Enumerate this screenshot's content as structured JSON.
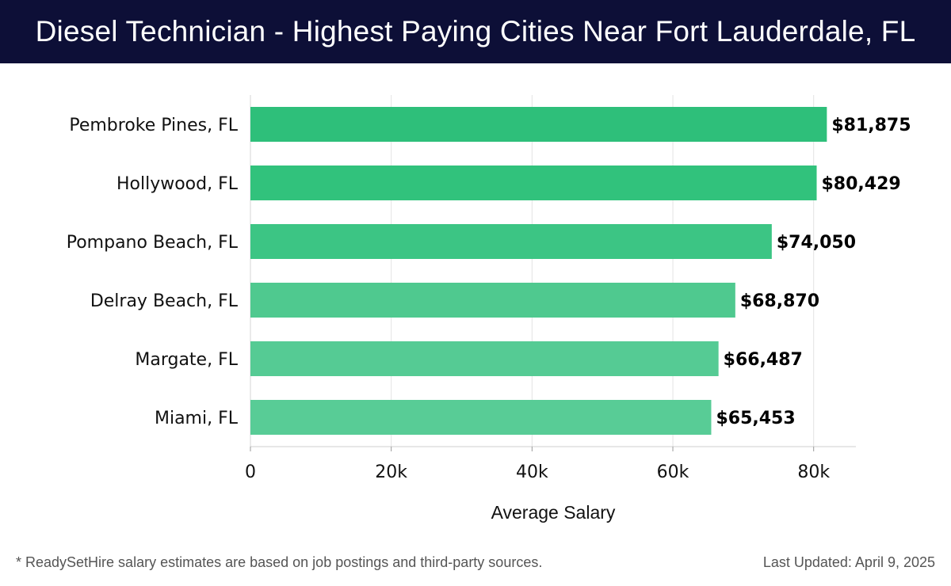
{
  "header": {
    "title": "Diesel Technician - Highest Paying Cities Near Fort Lauderdale, FL"
  },
  "chart_data": {
    "type": "bar",
    "orientation": "horizontal",
    "title": "Diesel Technician - Highest Paying Cities Near Fort Lauderdale, FL",
    "categories": [
      "Pembroke Pines, FL",
      "Hollywood, FL",
      "Pompano Beach, FL",
      "Delray Beach, FL",
      "Margate, FL",
      "Miami, FL"
    ],
    "values": [
      81875,
      80429,
      74050,
      68870,
      66487,
      65453
    ],
    "value_labels": [
      "$81,875",
      "$80,429",
      "$74,050",
      "$68,870",
      "$66,487",
      "$65,453"
    ],
    "bar_colors": [
      "#2ebf7a",
      "#31c27c",
      "#3cc584",
      "#4fc98f",
      "#55cb94",
      "#58cc96"
    ],
    "xlabel": "Average Salary",
    "ylabel": "",
    "xlim": [
      0,
      86000
    ],
    "xticks": [
      0,
      20000,
      40000,
      60000,
      80000
    ],
    "xtick_labels": [
      "0",
      "20k",
      "40k",
      "60k",
      "80k"
    ],
    "grid": true
  },
  "footer": {
    "note": "* ReadySetHire salary estimates are based on job postings and third-party sources.",
    "updated": "Last Updated: April 9, 2025"
  }
}
